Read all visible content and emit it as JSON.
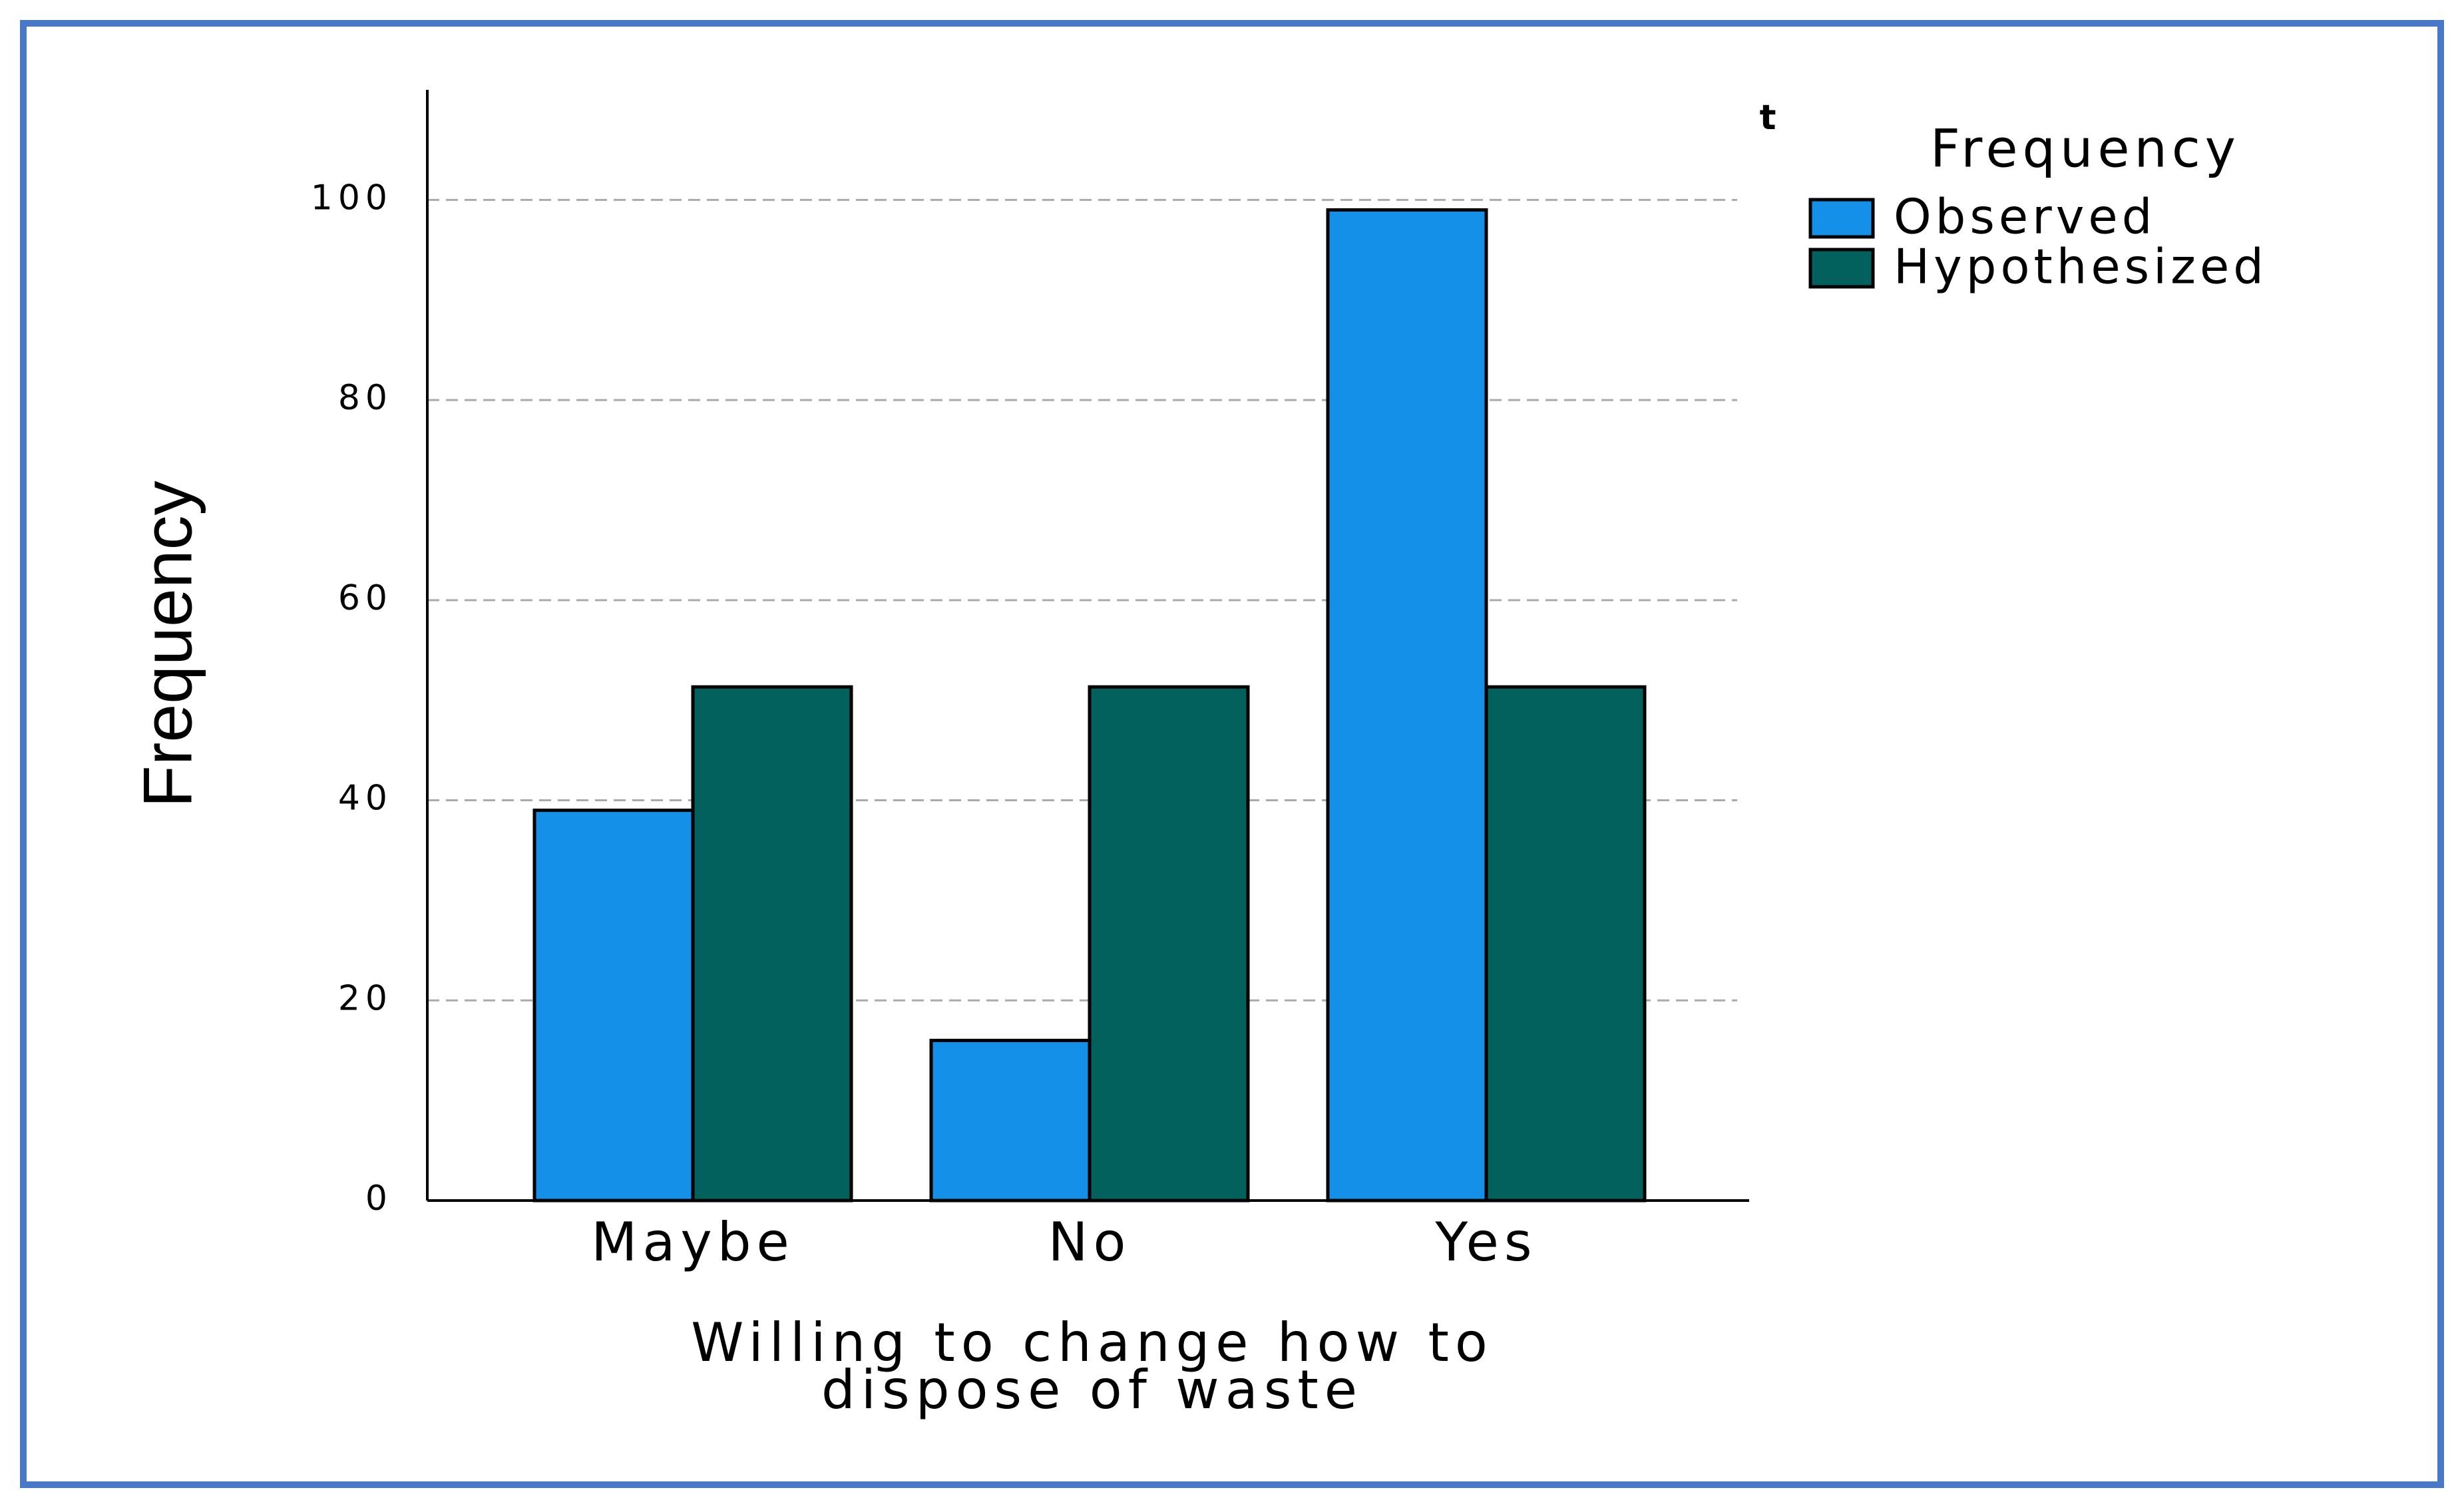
{
  "chart_data": {
    "type": "bar",
    "y_label": "Frequency",
    "x_label": [
      "Willing to change how to",
      "dispose of waste"
    ],
    "legend_title": "Frequency",
    "corner_text": "t",
    "categories": [
      "Maybe",
      "No",
      "Yes"
    ],
    "series": [
      {
        "name": "Observed",
        "color": "#1490e8",
        "values": [
          39,
          16,
          99
        ]
      },
      {
        "name": "Hypothesized",
        "color": "#02605d",
        "values": [
          51.33,
          51.33,
          51.33
        ]
      }
    ],
    "ylim": [
      0,
      111
    ],
    "yticks": [
      0,
      20,
      40,
      60,
      80,
      100
    ],
    "grid": true
  }
}
